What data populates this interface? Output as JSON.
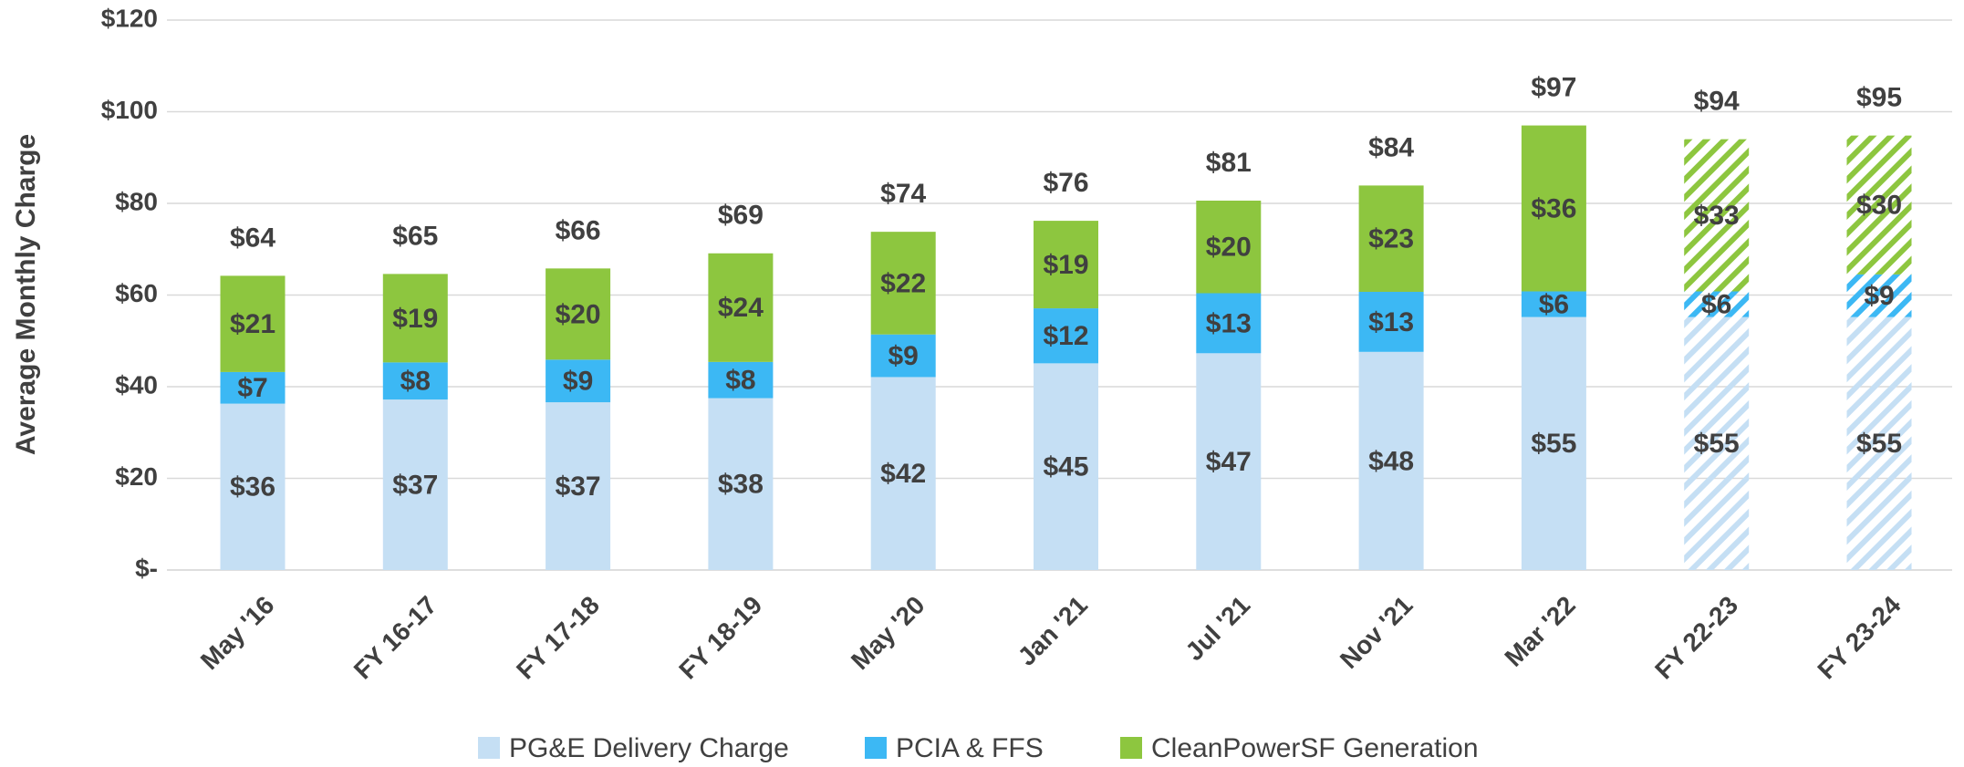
{
  "chart_data": {
    "type": "stacked_bar",
    "y_label": "Average Monthly Charge",
    "categories": [
      "May '16",
      "FY 16-17",
      "FY 17-18",
      "FY 18-19",
      "May '20",
      "Jan '21",
      "Jul '21",
      "Nov '21",
      "Mar '22",
      "FY 22-23",
      "FY 23-24"
    ],
    "series": [
      {
        "name": "PG&E Delivery Charge",
        "color": "#c5dff4",
        "values": [
          36.3,
          37.2,
          36.6,
          37.5,
          42.1,
          45.1,
          47.3,
          47.6,
          55.2,
          55.2,
          55.2
        ],
        "value_labels": [
          "$36",
          "$37",
          "$37",
          "$38",
          "$42",
          "$45",
          "$47",
          "$48",
          "$55",
          "$55",
          "$55"
        ]
      },
      {
        "name": "PCIA & FFS",
        "color": "#3cb8f4",
        "values": [
          6.9,
          8.1,
          9.3,
          7.9,
          9.3,
          12.0,
          13.1,
          13.1,
          5.6,
          5.6,
          9.3
        ],
        "value_labels": [
          "$7",
          "$8",
          "$9",
          "$8",
          "$9",
          "$12",
          "$13",
          "$13",
          "$6",
          "$6",
          "$9"
        ]
      },
      {
        "name": "CleanPowerSF Generation",
        "color": "#8dc63f",
        "values": [
          21.0,
          19.3,
          19.9,
          23.7,
          22.4,
          19.1,
          20.2,
          23.2,
          36.2,
          33.2,
          30.3
        ],
        "value_labels": [
          "$21",
          "$19",
          "$20",
          "$24",
          "$22",
          "$19",
          "$20",
          "$23",
          "$36",
          "$33",
          "$30"
        ]
      }
    ],
    "totals": [
      64.2,
      64.6,
      65.8,
      69.1,
      73.8,
      76.2,
      80.6,
      83.9,
      97.0,
      94.0,
      94.8
    ],
    "total_labels": [
      "$64",
      "$65",
      "$66",
      "$69",
      "$74",
      "$76",
      "$81",
      "$84",
      "$97",
      "$94",
      "$95"
    ],
    "hatched": [
      false,
      false,
      false,
      false,
      false,
      false,
      false,
      false,
      false,
      true,
      true
    ],
    "ylim": [
      0,
      120
    ],
    "yticks": [
      {
        "value": 0,
        "label": "$-"
      },
      {
        "value": 20,
        "label": "$20"
      },
      {
        "value": 40,
        "label": "$40"
      },
      {
        "value": 60,
        "label": "$60"
      },
      {
        "value": 80,
        "label": "$80"
      },
      {
        "value": 100,
        "label": "$100"
      },
      {
        "value": 120,
        "label": "$120"
      }
    ],
    "grid": true,
    "legend": "bottom"
  }
}
